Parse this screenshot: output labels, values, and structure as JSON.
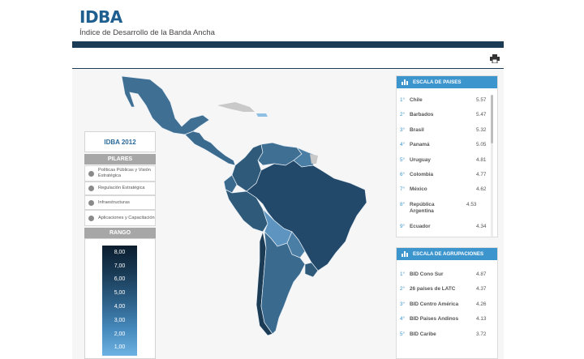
{
  "header": {
    "logo": "IDBA",
    "subtitle": "Índice de Desarrollo de la Banda Ancha"
  },
  "toolbar": {
    "print_icon": "printer-icon"
  },
  "left_panel": {
    "year_title": "IDBA 2012",
    "pillars_header": "PILARES",
    "pillars": [
      {
        "label": "Políticas Públicas y Visión Estratégica",
        "icon": "policy-icon"
      },
      {
        "label": "Regulación Estratégica",
        "icon": "regulation-icon"
      },
      {
        "label": "Infraestructuras",
        "icon": "infrastructure-icon"
      },
      {
        "label": "Aplicaciones y Capacitación",
        "icon": "applications-icon"
      }
    ],
    "range_header": "RANGO",
    "range_values": [
      "8,00",
      "7,00",
      "6,00",
      "5,00",
      "4,00",
      "3,00",
      "2,00",
      "1,00"
    ]
  },
  "country_ranking": {
    "title": "ESCALA DE PAISES",
    "rows": [
      {
        "rank": "1°",
        "name": "Chile",
        "value": "5.57"
      },
      {
        "rank": "2°",
        "name": "Barbados",
        "value": "5.47"
      },
      {
        "rank": "3°",
        "name": "Brasil",
        "value": "5.32"
      },
      {
        "rank": "4°",
        "name": "Panamá",
        "value": "5.05"
      },
      {
        "rank": "5°",
        "name": "Uruguay",
        "value": "4.81"
      },
      {
        "rank": "6°",
        "name": "Colombia",
        "value": "4.77"
      },
      {
        "rank": "7°",
        "name": "México",
        "value": "4.62"
      },
      {
        "rank": "8°",
        "name": "República Argentina",
        "value": "4.53"
      },
      {
        "rank": "9°",
        "name": "Ecuador",
        "value": "4.34"
      }
    ]
  },
  "group_ranking": {
    "title": "ESCALA DE AGRUPACIONES",
    "rows": [
      {
        "rank": "1°",
        "name": "BID Cono Sur",
        "value": "4.87"
      },
      {
        "rank": "2°",
        "name": "26 países de LATC",
        "value": "4.37"
      },
      {
        "rank": "3°",
        "name": "BID Centro América",
        "value": "4.26"
      },
      {
        "rank": "4°",
        "name": "BID Países Andinos",
        "value": "4.13"
      },
      {
        "rank": "5°",
        "name": "BID Caribe",
        "value": "3.72"
      }
    ]
  },
  "colors": {
    "brand": "#1f5f8f",
    "bar": "#1c3c55",
    "accent": "#3d95ce",
    "map_dark": "#2f5a7a",
    "map_mid": "#3f6f93",
    "map_light": "#5d95c0"
  }
}
